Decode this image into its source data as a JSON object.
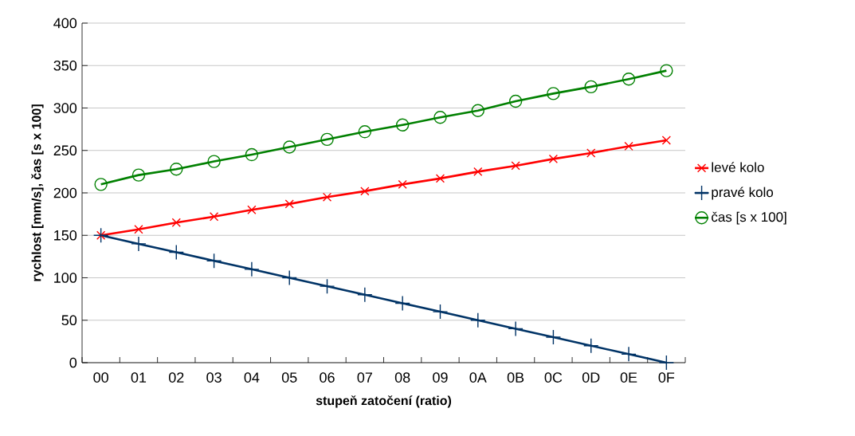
{
  "chart_data": {
    "type": "line",
    "xlabel": "stupeň zatočení (ratio)",
    "ylabel": "rychlost [mm/s], čas [s x 100]",
    "categories": [
      "00",
      "01",
      "02",
      "03",
      "04",
      "05",
      "06",
      "07",
      "08",
      "09",
      "0A",
      "0B",
      "0C",
      "0D",
      "0E",
      "0F"
    ],
    "ylim": [
      0,
      400
    ],
    "yticks": [
      0,
      50,
      100,
      150,
      200,
      250,
      300,
      350,
      400
    ],
    "grid": "y",
    "legend": "right",
    "line_style": "solid",
    "series": [
      {
        "name": "levé kolo",
        "color": "#ff0000",
        "marker": "cross",
        "values": [
          150,
          157,
          165,
          172,
          180,
          187,
          195,
          202,
          210,
          217,
          225,
          232,
          240,
          247,
          255,
          262
        ]
      },
      {
        "name": "pravé kolo",
        "color": "#003366",
        "marker": "plus",
        "values": [
          150,
          140,
          130,
          120,
          110,
          100,
          90,
          80,
          70,
          60,
          50,
          40,
          30,
          20,
          10,
          0
        ]
      },
      {
        "name": "čas [s x 100]",
        "color": "#008000",
        "marker": "circle",
        "values": [
          210,
          221,
          228,
          237,
          245,
          254,
          263,
          272,
          280,
          289,
          297,
          308,
          317,
          325,
          334,
          344
        ]
      }
    ]
  }
}
